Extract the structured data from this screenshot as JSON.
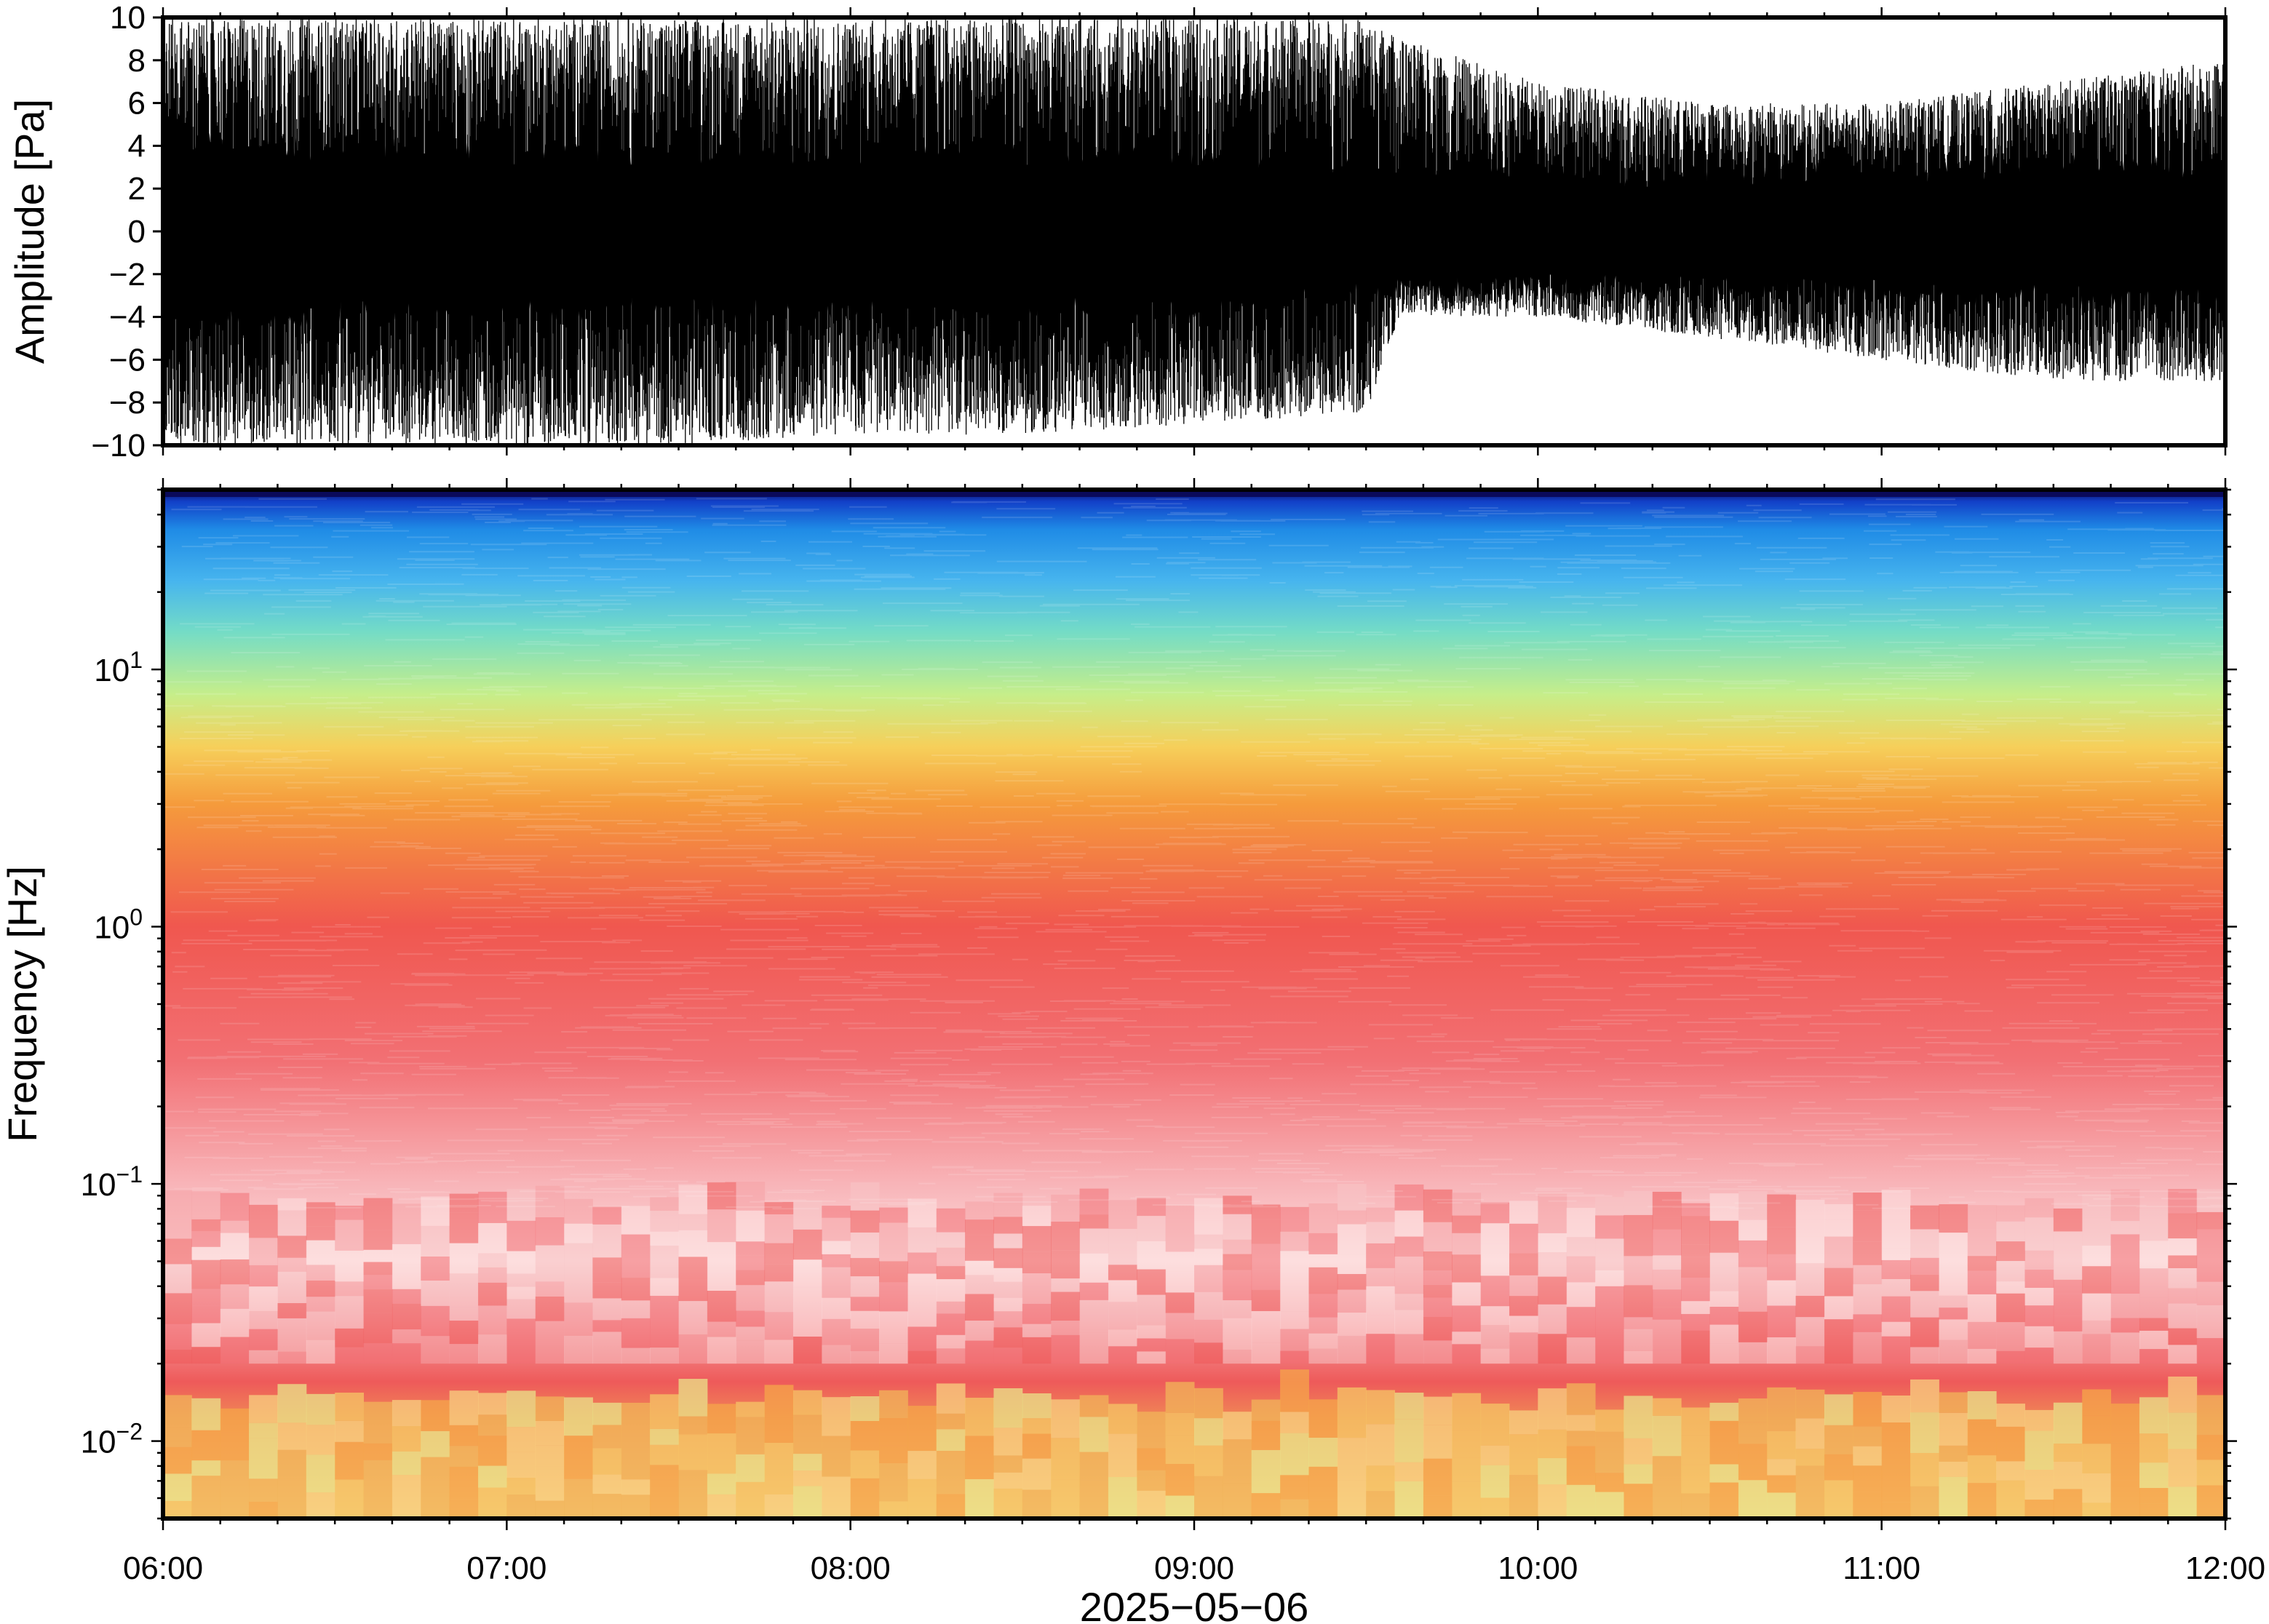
{
  "chart_data": [
    {
      "type": "line",
      "panel": "waveform",
      "ylabel": "Amplitude [Pa]",
      "ylim": [
        -10,
        10
      ],
      "yticks": [
        10,
        8,
        6,
        4,
        2,
        0,
        -2,
        -4,
        -6,
        -8,
        -10
      ],
      "ytick_labels": [
        "10",
        "8",
        "6",
        "4",
        "2",
        "0",
        "−2",
        "−4",
        "−6",
        "−8",
        "−10"
      ],
      "xlim": [
        "06:00",
        "12:00"
      ],
      "series": [
        {
          "values": "dense pressure trace",
          "x_hours": [
            6.0,
            6.5,
            7.0,
            7.5,
            8.0,
            8.5,
            9.0,
            9.5,
            9.6,
            10.0,
            10.5,
            11.0,
            11.5,
            12.0
          ],
          "envelope_max": [
            10,
            10,
            10,
            10,
            10,
            10,
            10,
            10,
            9,
            7,
            6,
            6,
            7,
            8
          ],
          "envelope_min": [
            -10,
            -10,
            -10,
            -10,
            -9.5,
            -9.5,
            -9,
            -8.5,
            -4,
            -4,
            -5,
            -6,
            -7,
            -7
          ],
          "core_band": [
            -3.5,
            3.5,
            -3,
            3,
            -3,
            3,
            -3,
            3,
            -2,
            2,
            -2,
            2,
            -2.5,
            2.5
          ]
        }
      ],
      "color": "#000000"
    },
    {
      "type": "heatmap",
      "panel": "spectrogram",
      "ylabel": "Frequency [Hz]",
      "yscale": "log",
      "ylim": [
        0.005,
        50
      ],
      "yticks": [
        0.01,
        0.1,
        1,
        10
      ],
      "ytick_labels": [
        {
          "base": "10",
          "exp": "−2"
        },
        {
          "base": "10",
          "exp": "−1"
        },
        {
          "base": "10",
          "exp": "0"
        },
        {
          "base": "10",
          "exp": "1"
        }
      ],
      "xlabel": "2025−05−06",
      "xlim": [
        "06:00",
        "12:00"
      ],
      "xticks": [
        "06:00",
        "07:00",
        "08:00",
        "09:00",
        "10:00",
        "11:00",
        "12:00"
      ],
      "colormap": [
        "#0a0a5a",
        "#1240c8",
        "#1f8be6",
        "#47b5ee",
        "#74dcc6",
        "#c6ee8a",
        "#f6cf5a",
        "#f59b3c",
        "#f0574f",
        "#f59ba0",
        "#fde2e2"
      ],
      "frequency_color_profile": [
        {
          "hz": 50,
          "color": "#0a0a5a"
        },
        {
          "hz": 45,
          "color": "#1240c8"
        },
        {
          "hz": 35,
          "color": "#1f8be6"
        },
        {
          "hz": 22,
          "color": "#47b5ee"
        },
        {
          "hz": 14,
          "color": "#74dcc6"
        },
        {
          "hz": 8,
          "color": "#c6ee8a"
        },
        {
          "hz": 5,
          "color": "#f6cf5a"
        },
        {
          "hz": 3,
          "color": "#f59b3c"
        },
        {
          "hz": 1,
          "color": "#f0574f"
        },
        {
          "hz": 0.3,
          "color": "#f27074"
        },
        {
          "hz": 0.1,
          "color": "#f8b4b8"
        },
        {
          "hz": 0.05,
          "color": "#fcdcdc"
        },
        {
          "hz": 0.03,
          "color": "#f6a3a6"
        },
        {
          "hz": 0.017,
          "color": "#ee5a5a"
        },
        {
          "hz": 0.012,
          "color": "#f08a55"
        },
        {
          "hz": 0.005,
          "color": "#f8d080"
        }
      ]
    }
  ]
}
